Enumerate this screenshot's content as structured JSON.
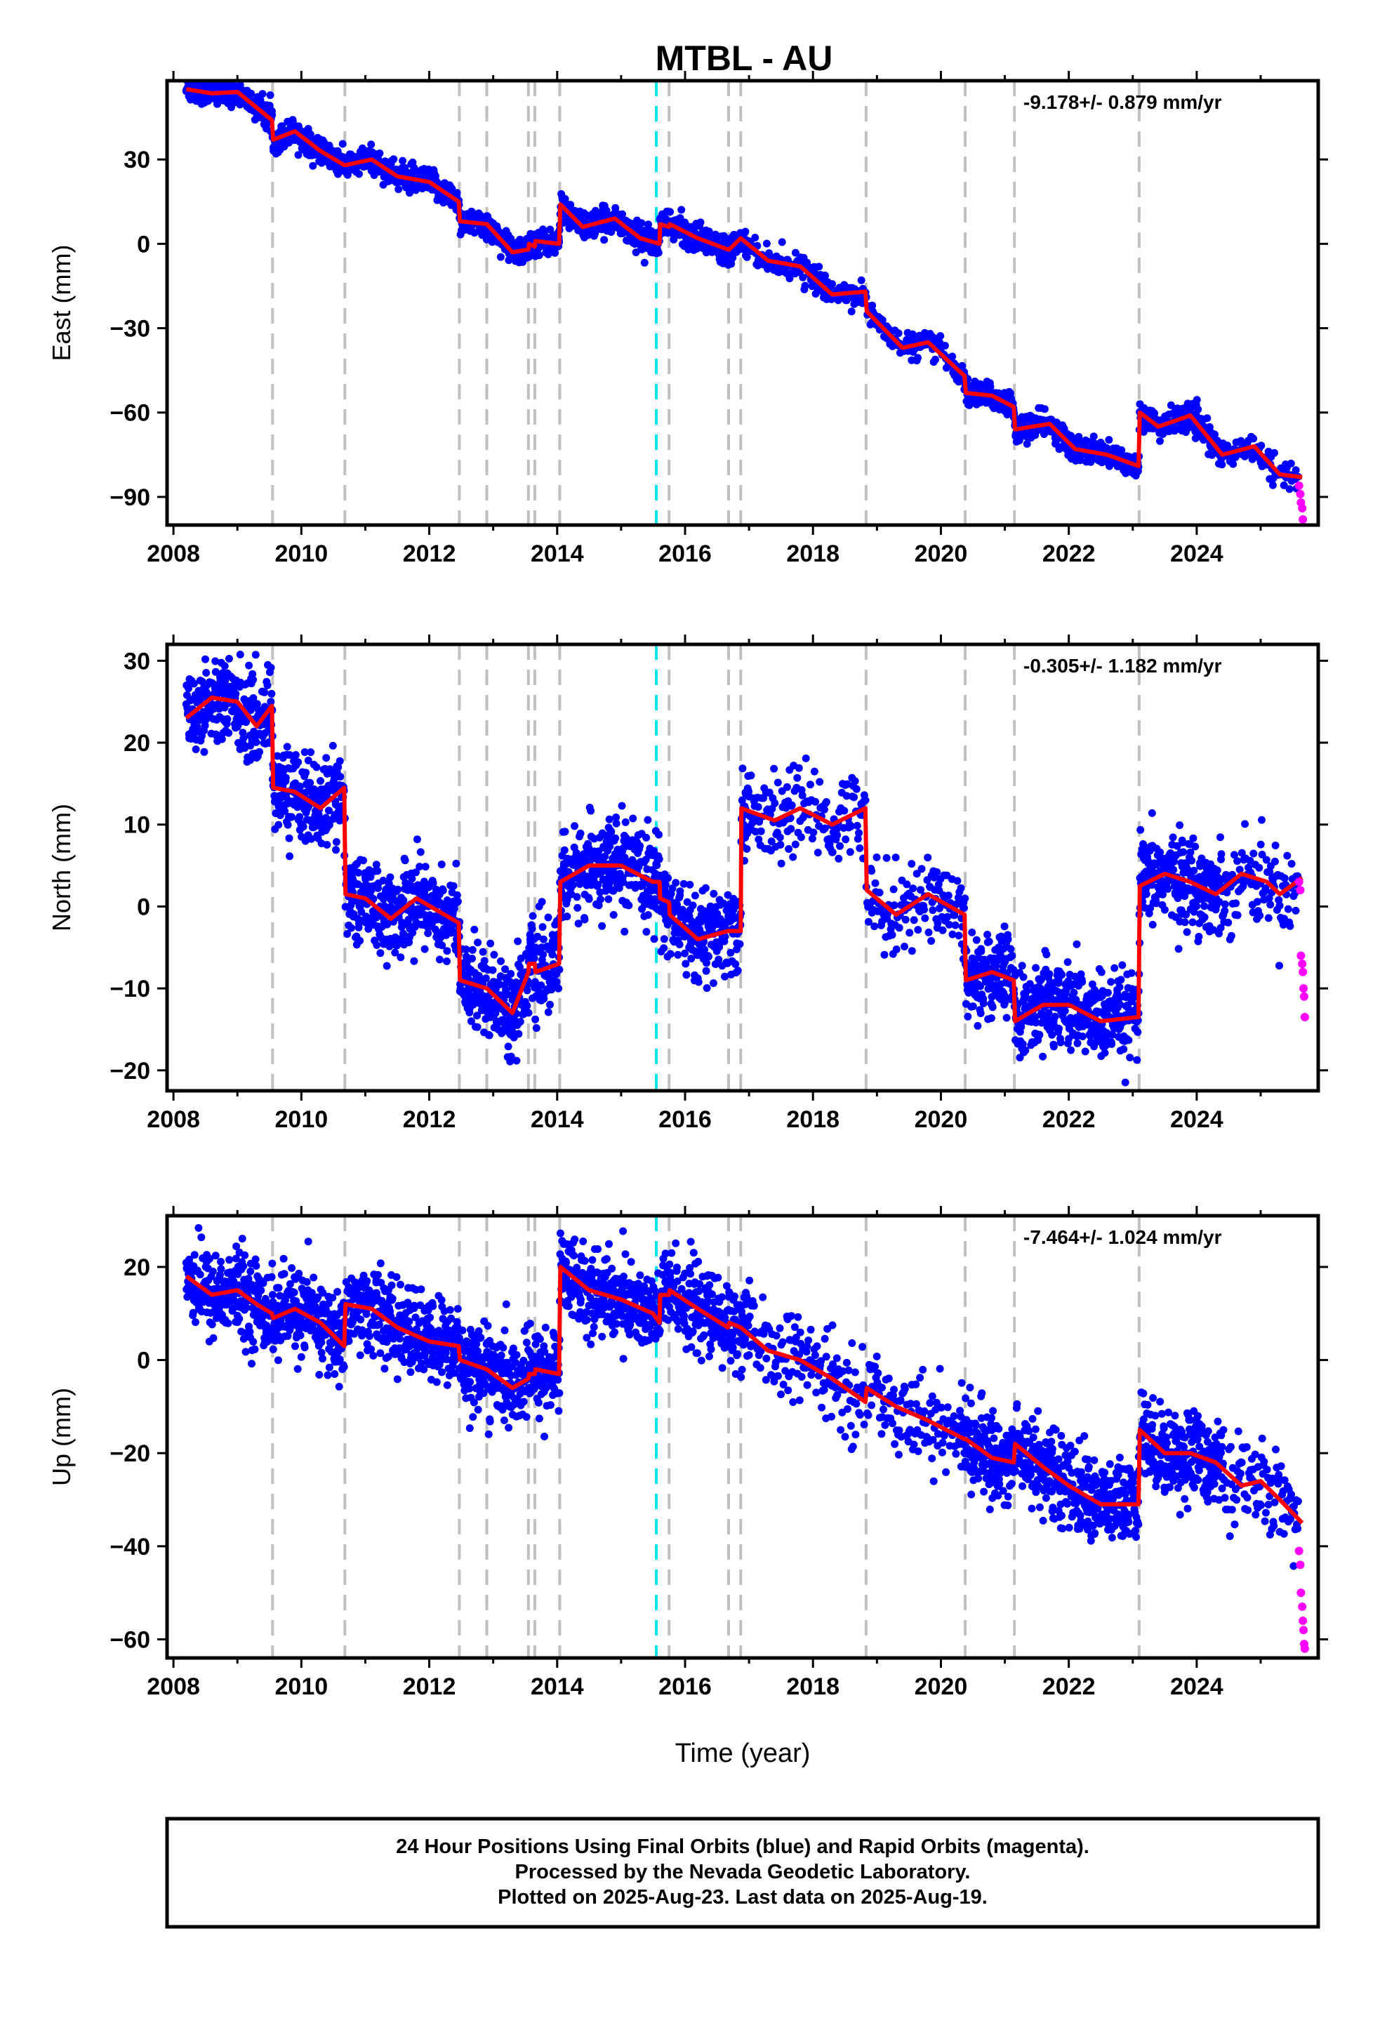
{
  "title": "MTBL - AU",
  "xlabel": "Time (year)",
  "footer": [
    "24 Hour Positions Using Final Orbits (blue) and Rapid Orbits (magenta).",
    "Processed by the Nevada Geodetic Laboratory.",
    "Plotted on 2025-Aug-23. Last data on 2025-Aug-19."
  ],
  "colors": {
    "final_orbits": "#0000ff",
    "rapid_orbits": "#ff00ff",
    "model": "#ff0000",
    "equipment_change": "#c0c0c0",
    "earthquake": "#00e5ee"
  },
  "chart_data": [
    {
      "type": "scatter",
      "component": "east",
      "ylabel": "East (mm)",
      "rate_label": "-9.178+/- 0.879 mm/yr",
      "xlim": [
        2007.9,
        2025.9
      ],
      "ylim": [
        -100,
        58
      ],
      "xticks": [
        2008,
        2010,
        2012,
        2014,
        2016,
        2018,
        2020,
        2022,
        2024
      ],
      "yticks": [
        -90,
        -60,
        -30,
        0,
        30
      ],
      "steps": [
        2009.55,
        2010.68,
        2012.47,
        2012.9,
        2013.55,
        2013.65,
        2014.04,
        2015.75,
        2016.68,
        2016.87,
        2018.83,
        2020.38,
        2021.15,
        2023.1
      ],
      "earthquake": [
        2015.55
      ],
      "model": [
        [
          2008.2,
          55
        ],
        [
          2008.6,
          53.5
        ],
        [
          2009.0,
          54
        ],
        [
          2009.54,
          44
        ],
        [
          2009.56,
          37
        ],
        [
          2009.9,
          40
        ],
        [
          2010.3,
          33
        ],
        [
          2010.67,
          28
        ],
        [
          2010.69,
          28
        ],
        [
          2011.1,
          30
        ],
        [
          2011.5,
          24
        ],
        [
          2012.0,
          22
        ],
        [
          2012.46,
          15
        ],
        [
          2012.48,
          8
        ],
        [
          2012.9,
          7
        ],
        [
          2013.3,
          -3
        ],
        [
          2013.55,
          -2
        ],
        [
          2013.56,
          0
        ],
        [
          2013.65,
          -1
        ],
        [
          2013.66,
          1
        ],
        [
          2014.03,
          0
        ],
        [
          2014.05,
          14
        ],
        [
          2014.4,
          6
        ],
        [
          2014.9,
          9
        ],
        [
          2015.3,
          2
        ],
        [
          2015.6,
          0
        ],
        [
          2015.61,
          7
        ],
        [
          2015.75,
          6
        ],
        [
          2015.76,
          7
        ],
        [
          2016.2,
          2
        ],
        [
          2016.67,
          -2
        ],
        [
          2016.69,
          -2
        ],
        [
          2016.87,
          2
        ],
        [
          2017.3,
          -6
        ],
        [
          2017.8,
          -8
        ],
        [
          2018.3,
          -18
        ],
        [
          2018.82,
          -17
        ],
        [
          2018.84,
          -24
        ],
        [
          2019.4,
          -37
        ],
        [
          2019.8,
          -35
        ],
        [
          2020.37,
          -47
        ],
        [
          2020.39,
          -53
        ],
        [
          2020.8,
          -54
        ],
        [
          2021.14,
          -58
        ],
        [
          2021.16,
          -66
        ],
        [
          2021.7,
          -64
        ],
        [
          2022.1,
          -73
        ],
        [
          2022.6,
          -75
        ],
        [
          2023.09,
          -79
        ],
        [
          2023.11,
          -60
        ],
        [
          2023.4,
          -65
        ],
        [
          2023.9,
          -61
        ],
        [
          2024.4,
          -75
        ],
        [
          2024.9,
          -72
        ],
        [
          2025.3,
          -82
        ],
        [
          2025.65,
          -83
        ]
      ],
      "rapid": [
        [
          2025.6,
          -86
        ],
        [
          2025.62,
          -89
        ],
        [
          2025.63,
          -92
        ],
        [
          2025.65,
          -94
        ],
        [
          2025.66,
          -98
        ]
      ]
    },
    {
      "type": "scatter",
      "component": "north",
      "ylabel": "North (mm)",
      "rate_label": "-0.305+/- 1.182 mm/yr",
      "xlim": [
        2007.9,
        2025.9
      ],
      "ylim": [
        -22.5,
        32
      ],
      "xticks": [
        2008,
        2010,
        2012,
        2014,
        2016,
        2018,
        2020,
        2022,
        2024
      ],
      "yticks": [
        -20,
        -10,
        0,
        10,
        20,
        30
      ],
      "steps": [
        2009.55,
        2010.68,
        2012.47,
        2012.9,
        2013.55,
        2013.65,
        2014.04,
        2015.75,
        2016.68,
        2016.87,
        2018.83,
        2020.38,
        2021.15,
        2023.1
      ],
      "earthquake": [
        2015.55
      ],
      "model": [
        [
          2008.2,
          23
        ],
        [
          2008.6,
          25.5
        ],
        [
          2009.0,
          25
        ],
        [
          2009.3,
          22
        ],
        [
          2009.54,
          24.5
        ],
        [
          2009.56,
          14.5
        ],
        [
          2009.9,
          14
        ],
        [
          2010.3,
          12
        ],
        [
          2010.67,
          14.5
        ],
        [
          2010.69,
          1.5
        ],
        [
          2011.0,
          1
        ],
        [
          2011.4,
          -1.5
        ],
        [
          2011.8,
          1
        ],
        [
          2012.46,
          -2
        ],
        [
          2012.48,
          -9
        ],
        [
          2012.9,
          -10
        ],
        [
          2013.3,
          -13
        ],
        [
          2013.55,
          -8
        ],
        [
          2013.56,
          -7
        ],
        [
          2013.65,
          -7
        ],
        [
          2013.66,
          -8
        ],
        [
          2014.03,
          -7
        ],
        [
          2014.05,
          3
        ],
        [
          2014.5,
          5
        ],
        [
          2015.0,
          5
        ],
        [
          2015.5,
          3
        ],
        [
          2015.6,
          3
        ],
        [
          2015.61,
          1
        ],
        [
          2015.75,
          0.5
        ],
        [
          2015.76,
          -1
        ],
        [
          2016.2,
          -4
        ],
        [
          2016.67,
          -3
        ],
        [
          2016.69,
          -3
        ],
        [
          2016.87,
          -3
        ],
        [
          2016.88,
          12
        ],
        [
          2017.4,
          10.5
        ],
        [
          2017.8,
          12
        ],
        [
          2018.3,
          10
        ],
        [
          2018.82,
          12
        ],
        [
          2018.84,
          2
        ],
        [
          2019.3,
          -1
        ],
        [
          2019.8,
          1.5
        ],
        [
          2020.37,
          -1
        ],
        [
          2020.39,
          -9
        ],
        [
          2020.8,
          -8
        ],
        [
          2021.14,
          -9
        ],
        [
          2021.16,
          -14
        ],
        [
          2021.6,
          -12
        ],
        [
          2022.0,
          -12
        ],
        [
          2022.5,
          -14
        ],
        [
          2023.09,
          -13.5
        ],
        [
          2023.11,
          2.5
        ],
        [
          2023.5,
          4
        ],
        [
          2023.9,
          3
        ],
        [
          2024.3,
          1.5
        ],
        [
          2024.7,
          4
        ],
        [
          2025.1,
          3
        ],
        [
          2025.3,
          1.5
        ],
        [
          2025.65,
          3.5
        ]
      ],
      "rapid": [
        [
          2025.6,
          3
        ],
        [
          2025.62,
          2
        ],
        [
          2025.63,
          -6
        ],
        [
          2025.65,
          -7
        ],
        [
          2025.66,
          -8
        ],
        [
          2025.67,
          -10
        ],
        [
          2025.68,
          -11
        ],
        [
          2025.69,
          -13.5
        ]
      ]
    },
    {
      "type": "scatter",
      "component": "up",
      "ylabel": "Up (mm)",
      "rate_label": "-7.464+/- 1.024 mm/yr",
      "xlim": [
        2007.9,
        2025.9
      ],
      "ylim": [
        -64,
        31
      ],
      "xticks": [
        2008,
        2010,
        2012,
        2014,
        2016,
        2018,
        2020,
        2022,
        2024
      ],
      "yticks": [
        -60,
        -40,
        -20,
        0,
        20
      ],
      "steps": [
        2009.55,
        2010.68,
        2012.47,
        2012.9,
        2013.55,
        2013.65,
        2014.04,
        2015.75,
        2016.68,
        2016.87,
        2018.83,
        2020.38,
        2021.15,
        2023.1
      ],
      "earthquake": [
        2015.55
      ],
      "model": [
        [
          2008.2,
          18
        ],
        [
          2008.6,
          14
        ],
        [
          2009.0,
          15
        ],
        [
          2009.3,
          12
        ],
        [
          2009.54,
          10
        ],
        [
          2009.56,
          9
        ],
        [
          2009.9,
          11
        ],
        [
          2010.3,
          8
        ],
        [
          2010.67,
          3
        ],
        [
          2010.69,
          12
        ],
        [
          2011.1,
          11
        ],
        [
          2011.5,
          7
        ],
        [
          2012.0,
          4
        ],
        [
          2012.46,
          3
        ],
        [
          2012.48,
          0
        ],
        [
          2012.9,
          -2
        ],
        [
          2013.3,
          -6
        ],
        [
          2013.55,
          -4
        ],
        [
          2013.56,
          -3
        ],
        [
          2013.65,
          -3
        ],
        [
          2013.66,
          -2
        ],
        [
          2014.03,
          -3
        ],
        [
          2014.05,
          20
        ],
        [
          2014.5,
          15
        ],
        [
          2015.0,
          13
        ],
        [
          2015.5,
          10
        ],
        [
          2015.6,
          8
        ],
        [
          2015.61,
          14
        ],
        [
          2015.75,
          14
        ],
        [
          2015.76,
          15
        ],
        [
          2016.2,
          11
        ],
        [
          2016.67,
          7
        ],
        [
          2016.69,
          8
        ],
        [
          2016.87,
          7
        ],
        [
          2017.3,
          2
        ],
        [
          2017.8,
          0
        ],
        [
          2018.3,
          -4
        ],
        [
          2018.82,
          -9
        ],
        [
          2018.84,
          -6
        ],
        [
          2019.3,
          -10
        ],
        [
          2019.8,
          -13
        ],
        [
          2020.37,
          -17
        ],
        [
          2020.39,
          -17
        ],
        [
          2020.8,
          -21
        ],
        [
          2021.14,
          -22
        ],
        [
          2021.16,
          -18
        ],
        [
          2021.6,
          -23
        ],
        [
          2022.0,
          -27
        ],
        [
          2022.5,
          -31
        ],
        [
          2023.09,
          -31
        ],
        [
          2023.11,
          -15
        ],
        [
          2023.5,
          -20
        ],
        [
          2023.9,
          -20
        ],
        [
          2024.3,
          -22
        ],
        [
          2024.7,
          -27
        ],
        [
          2025.0,
          -26
        ],
        [
          2025.3,
          -30
        ],
        [
          2025.65,
          -35
        ]
      ],
      "rapid": [
        [
          2025.6,
          -41
        ],
        [
          2025.62,
          -44
        ],
        [
          2025.63,
          -50
        ],
        [
          2025.65,
          -53
        ],
        [
          2025.66,
          -56
        ],
        [
          2025.67,
          -58
        ],
        [
          2025.68,
          -61
        ],
        [
          2025.69,
          -62
        ]
      ]
    }
  ]
}
